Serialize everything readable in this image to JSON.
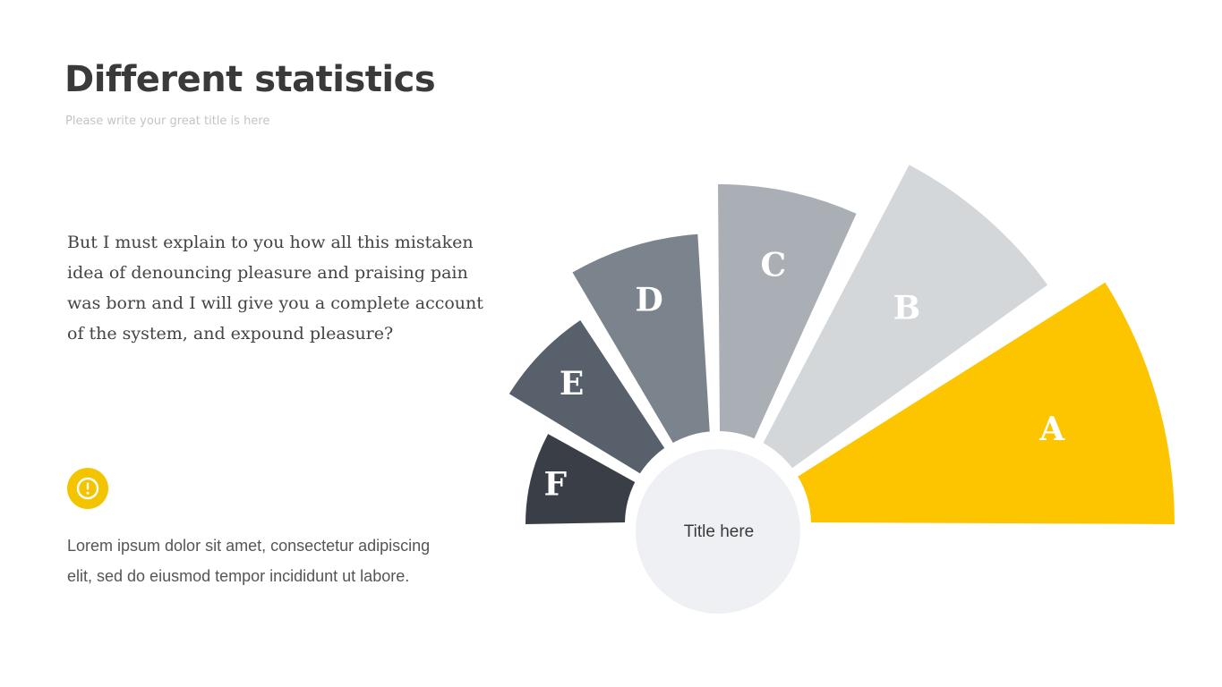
{
  "title": "Different statistics",
  "subtitle": "Please write your great title is here",
  "intro": "But I must explain to you how all this mistaken idea of denouncing pleasure and praising pain was born and I will give you a complete account of the system, and expound pleasure?",
  "alert_icon": "exclamation-circle-icon",
  "body_text": "Lorem ipsum dolor sit amet, consectetur adipiscing elit, sed do eiusmod tempor incididunt ut labore.",
  "accent_color": "#f5c400",
  "diagram": {
    "center_label": "Title here",
    "center_color": "#eff0f4",
    "segments": [
      {
        "label": "A",
        "color": "#fdc500"
      },
      {
        "label": "B",
        "color": "#d4d7da"
      },
      {
        "label": "C",
        "color": "#aaafb5"
      },
      {
        "label": "D",
        "color": "#7b848d"
      },
      {
        "label": "E",
        "color": "#58616b"
      },
      {
        "label": "F",
        "color": "#3a3f47"
      }
    ]
  }
}
